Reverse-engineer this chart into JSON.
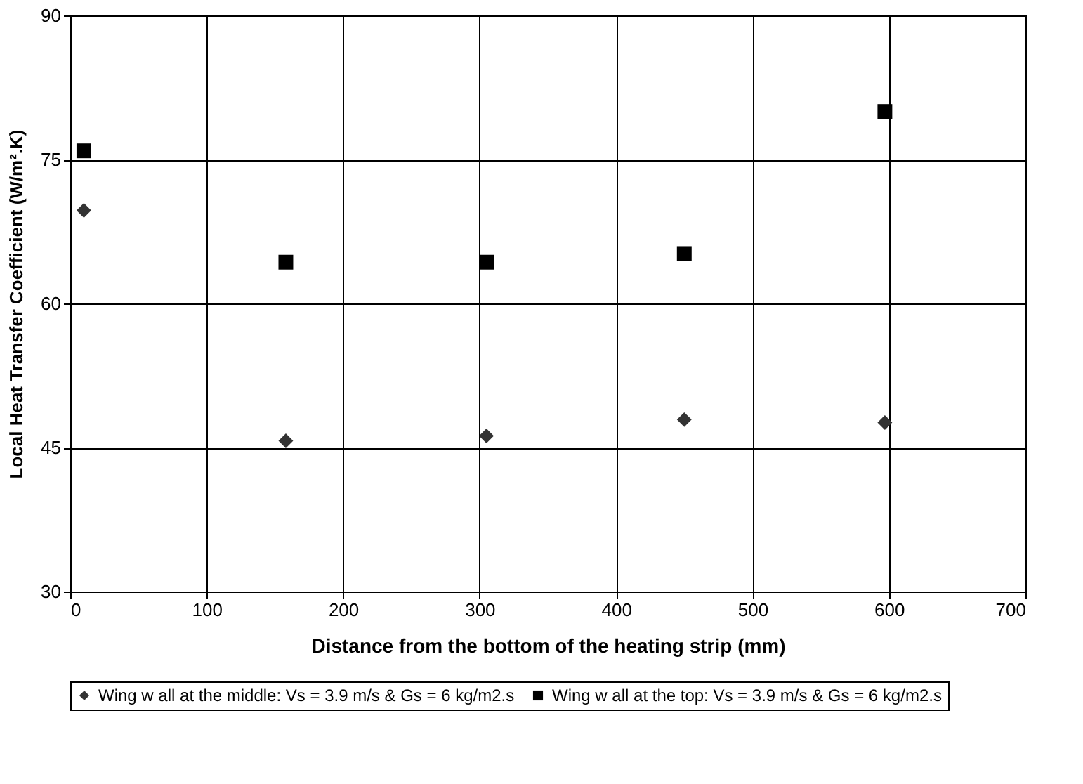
{
  "chart_data": {
    "type": "scatter",
    "xlabel": "Distance from the bottom of the heating strip (mm)",
    "ylabel": "Local Heat Transfer Coefficient (W/m².K)",
    "xlim": [
      0,
      700
    ],
    "xticks": [
      0,
      100,
      200,
      300,
      400,
      500,
      600,
      700
    ],
    "ylim": [
      30,
      90
    ],
    "yticks": [
      30,
      45,
      60,
      75,
      90
    ],
    "grid": true,
    "legend": "bottom",
    "series": [
      {
        "name": "Wing w all at the middle: Vs = 3.9 m/s & Gs = 6 kg/m2.s",
        "color": "#333333",
        "marker": "diamond",
        "x": [
          10,
          158,
          305,
          450,
          597
        ],
        "values": [
          69.7,
          45.7,
          46.2,
          47.9,
          47.6
        ]
      },
      {
        "name": "Wing w all at the top: Vs = 3.9 m/s & Gs = 6 kg/m2.s",
        "color": "#000000",
        "marker": "square",
        "x": [
          10,
          158,
          305,
          450,
          597
        ],
        "values": [
          75.9,
          64.3,
          64.3,
          65.2,
          80.0
        ]
      }
    ]
  }
}
